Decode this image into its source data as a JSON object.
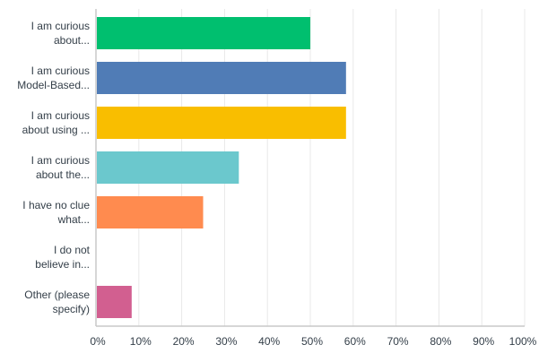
{
  "chart_data": {
    "type": "bar",
    "orientation": "horizontal",
    "categories": [
      [
        "I am curious",
        "about..."
      ],
      [
        "I am curious",
        "Model-Based..."
      ],
      [
        "I am curious",
        "about using ..."
      ],
      [
        "I am curious",
        "about the..."
      ],
      [
        "I have no clue",
        "what..."
      ],
      [
        "I do not",
        "believe in..."
      ],
      [
        "Other (please",
        "specify)"
      ]
    ],
    "values": [
      50.0,
      58.33,
      58.33,
      33.33,
      25.0,
      0,
      8.33
    ],
    "colors": [
      "#00bf6f",
      "#507cb6",
      "#f9be00",
      "#6bc8cd",
      "#ff8b4f",
      "#7d5aa7",
      "#d25f90"
    ],
    "xlim": [
      0,
      100
    ],
    "x_ticks": [
      "0%",
      "10%",
      "20%",
      "30%",
      "40%",
      "50%",
      "60%",
      "70%",
      "80%",
      "90%",
      "100%"
    ],
    "grid": true,
    "title": "",
    "xlabel": "",
    "ylabel": ""
  }
}
